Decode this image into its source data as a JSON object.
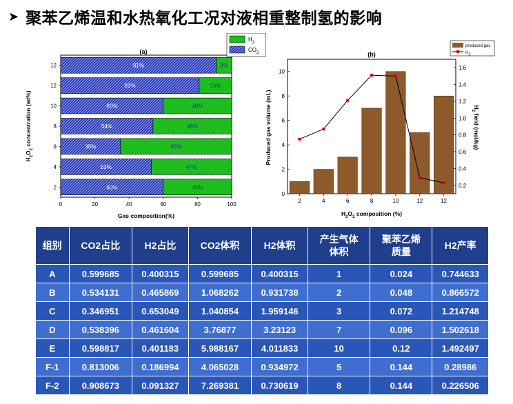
{
  "slide": {
    "title": "聚苯乙烯温和水热氧化工况对液相重整制氢的影响"
  },
  "chart_data": [
    {
      "type": "bar",
      "panel_label": "(a)",
      "orientation": "horizontal",
      "stacked": true,
      "categories": [
        "12",
        "12",
        "10",
        "8",
        "6",
        "4",
        "2"
      ],
      "series": [
        {
          "name": "CO2",
          "values": [
            91,
            81,
            60,
            54,
            35,
            53,
            60
          ],
          "labels": [
            "91%",
            "81%",
            "60%",
            "54%",
            "35%",
            "53%",
            "60%"
          ]
        },
        {
          "name": "H2",
          "values": [
            9,
            19,
            40,
            46,
            65,
            47,
            40
          ],
          "labels": [
            "9%",
            "19%",
            "40%",
            "46%",
            "65%",
            "47%",
            "40%"
          ]
        }
      ],
      "xlabel": "Gas composition(%)",
      "ylabel": "H2O2 concentration (wt%)",
      "xlim": [
        0,
        100
      ],
      "xticks": [
        "0",
        "20",
        "40",
        "60",
        "80",
        "100"
      ],
      "legend": {
        "position": "top-right",
        "entries": [
          "H2",
          "CO2"
        ]
      },
      "colors": {
        "H2": "#22cc22",
        "CO2": "#2a3bbd"
      }
    },
    {
      "type": "bar",
      "panel_label": "(b)",
      "categories": [
        "2",
        "4",
        "6",
        "8",
        "10",
        "12",
        "12"
      ],
      "series": [
        {
          "name": "produced gas",
          "type": "bar",
          "axis": "left",
          "values": [
            1,
            2,
            3,
            7,
            10,
            5,
            8
          ]
        },
        {
          "name": "H2",
          "type": "line",
          "axis": "right",
          "values": [
            0.75,
            0.87,
            1.21,
            1.51,
            1.5,
            0.29,
            0.23
          ]
        }
      ],
      "xlabel": "H2O2 composition (%)",
      "ylabel": "Produced gas volume (mL)",
      "y2label": "H2 field (mol/kg)",
      "ylim": [
        0,
        11
      ],
      "y2lim": [
        0.1,
        1.7
      ],
      "yticks": [
        "0",
        "2",
        "4",
        "6",
        "8",
        "10"
      ],
      "y2ticks": [
        "0.2",
        "0.4",
        "0.6",
        "0.8",
        "1.0",
        "1.2",
        "1.4",
        "1.6"
      ],
      "legend": {
        "position": "top-right",
        "entries": [
          "produced gas",
          "H2"
        ]
      },
      "colors": {
        "bar": "#8c5a2b",
        "line": "#000000",
        "marker": "#dd0000"
      }
    }
  ],
  "table": {
    "headers": [
      "组别",
      "CO2占比",
      "H2占比",
      "CO2体积",
      "H2体积",
      "产生气体\n体积",
      "聚苯乙烯\n质量",
      "H2产率"
    ],
    "rows": [
      [
        "A",
        "0.599685",
        "0.400315",
        "0.599685",
        "0.400315",
        "1",
        "0.024",
        "0.744633"
      ],
      [
        "B",
        "0.534131",
        "0.465869",
        "1.068262",
        "0.931738",
        "2",
        "0.048",
        "0.866572"
      ],
      [
        "C",
        "0.346951",
        "0.653049",
        "1.040854",
        "1.959146",
        "3",
        "0.072",
        "1.214748"
      ],
      [
        "D",
        "0.538396",
        "0.461604",
        "3.76877",
        "3.23123",
        "7",
        "0.096",
        "1.502618"
      ],
      [
        "E",
        "0.598817",
        "0.401183",
        "5.988167",
        "4.011833",
        "10",
        "0.12",
        "1.492497"
      ],
      [
        "F-1",
        "0.813006",
        "0.186994",
        "4.065028",
        "0.934972",
        "5",
        "0.144",
        "0.28986"
      ],
      [
        "F-2",
        "0.908673",
        "0.091327",
        "7.269381",
        "0.730619",
        "8",
        "0.144",
        "0.226506"
      ]
    ]
  }
}
